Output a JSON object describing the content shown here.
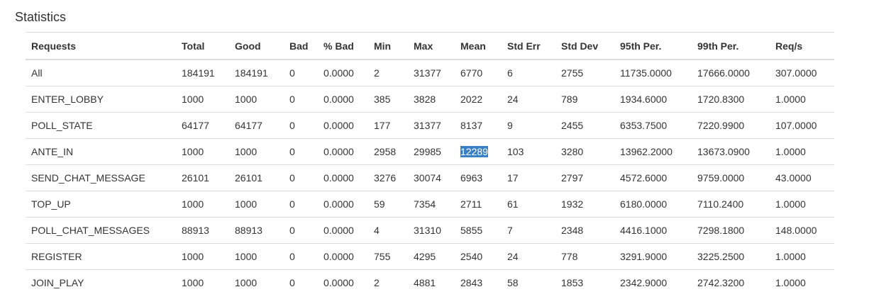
{
  "page": {
    "title": "Statistics"
  },
  "table": {
    "headers": [
      "Requests",
      "Total",
      "Good",
      "Bad",
      "% Bad",
      "Min",
      "Max",
      "Mean",
      "Std Err",
      "Std Dev",
      "95th Per.",
      "99th Per.",
      "Req/s"
    ],
    "rows": [
      [
        "All",
        "184191",
        "184191",
        "0",
        "0.0000",
        "2",
        "31377",
        "6770",
        "6",
        "2755",
        "11735.0000",
        "17666.0000",
        "307.0000"
      ],
      [
        "ENTER_LOBBY",
        "1000",
        "1000",
        "0",
        "0.0000",
        "385",
        "3828",
        "2022",
        "24",
        "789",
        "1934.6000",
        "1720.8300",
        "1.0000"
      ],
      [
        "POLL_STATE",
        "64177",
        "64177",
        "0",
        "0.0000",
        "177",
        "31377",
        "8137",
        "9",
        "2455",
        "6353.7500",
        "7220.9900",
        "107.0000"
      ],
      [
        "ANTE_IN",
        "1000",
        "1000",
        "0",
        "0.0000",
        "2958",
        "29985",
        "12289",
        "103",
        "3280",
        "13962.2000",
        "13673.0900",
        "1.0000"
      ],
      [
        "SEND_CHAT_MESSAGE",
        "26101",
        "26101",
        "0",
        "0.0000",
        "3276",
        "30074",
        "6963",
        "17",
        "2797",
        "4572.6000",
        "9759.0000",
        "43.0000"
      ],
      [
        "TOP_UP",
        "1000",
        "1000",
        "0",
        "0.0000",
        "59",
        "7354",
        "2711",
        "61",
        "1932",
        "6180.0000",
        "7110.2400",
        "1.0000"
      ],
      [
        "POLL_CHAT_MESSAGES",
        "88913",
        "88913",
        "0",
        "0.0000",
        "4",
        "31310",
        "5855",
        "7",
        "2348",
        "4416.1000",
        "7298.1800",
        "148.0000"
      ],
      [
        "REGISTER",
        "1000",
        "1000",
        "0",
        "0.0000",
        "755",
        "4295",
        "2540",
        "24",
        "778",
        "3291.9000",
        "3225.2500",
        "1.0000"
      ],
      [
        "JOIN_PLAY",
        "1000",
        "1000",
        "0",
        "0.0000",
        "2",
        "4881",
        "2843",
        "58",
        "1853",
        "2342.9000",
        "2742.3200",
        "1.0000"
      ]
    ],
    "selected_cell": {
      "row": 3,
      "col": 7
    },
    "selection_color": "#3a80c6"
  }
}
